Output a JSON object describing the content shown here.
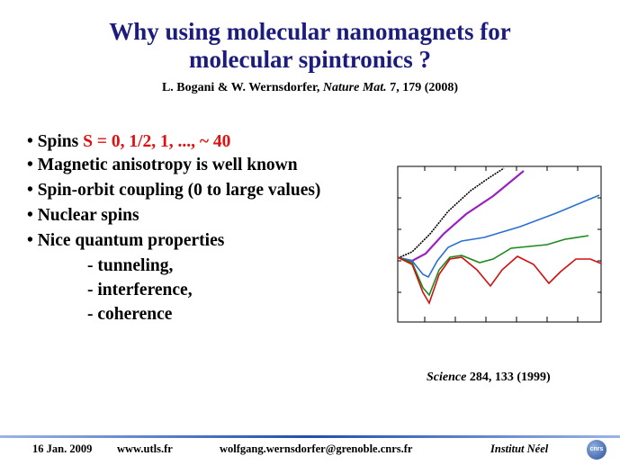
{
  "header": {
    "title_lines": [
      "Why using molecular nanomagnets for",
      "molecular spintronics ?"
    ],
    "reference": {
      "authors": "L. Bogani & W. Wernsdorfer, ",
      "journal": "Nature Mat.",
      "details": " 7, 179 (2008)"
    }
  },
  "bullets": {
    "first": {
      "prefix": "• Spins ",
      "highlight": "S = 0, 1/2, 1, ..., ~ 40"
    },
    "items": [
      "• Magnetic anisotropy is well known",
      "• Spin-orbit coupling (0 to large values)",
      "• Nuclear spins",
      "• Nice quantum properties"
    ],
    "sub_items": [
      "- tunneling,",
      "- interference,",
      "- coherence"
    ]
  },
  "figure": {
    "citation": {
      "journal": "Science",
      "details": " 284, 133 (1999)"
    }
  },
  "footer": {
    "date": "16 Jan. 2009",
    "website": "www.utls.fr",
    "email": "wolfgang.wernsdorfer@grenoble.cnrs.fr",
    "institute": "Institut Néel",
    "logo": "cnrs"
  }
}
